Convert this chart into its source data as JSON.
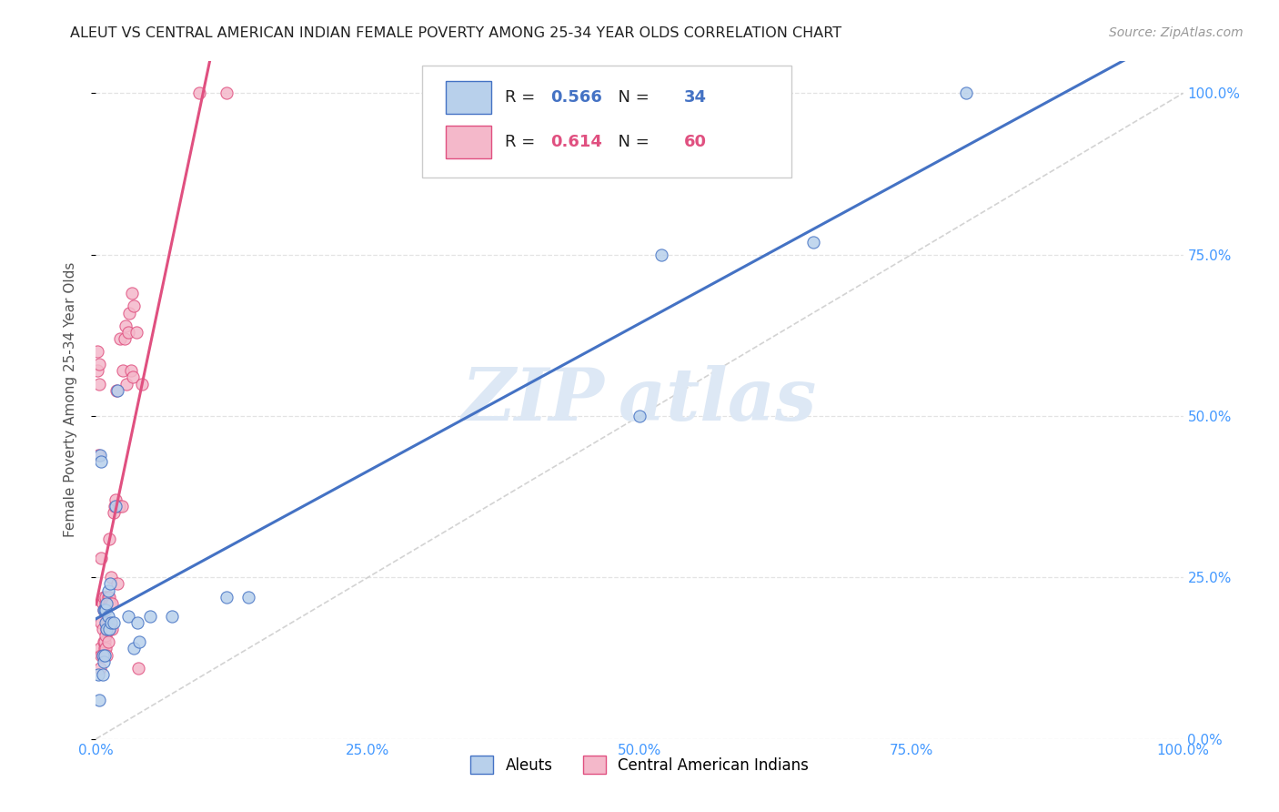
{
  "title": "ALEUT VS CENTRAL AMERICAN INDIAN FEMALE POVERTY AMONG 25-34 YEAR OLDS CORRELATION CHART",
  "source": "Source: ZipAtlas.com",
  "ylabel": "Female Poverty Among 25-34 Year Olds",
  "legend_labels": [
    "Aleuts",
    "Central American Indians"
  ],
  "aleut_R": 0.566,
  "aleut_N": 34,
  "cai_R": 0.614,
  "cai_N": 60,
  "aleut_color": "#b8d0eb",
  "aleut_line_color": "#4472c4",
  "cai_color": "#f4b8ca",
  "cai_line_color": "#e05080",
  "diagonal_color": "#c8c8c8",
  "background_color": "#ffffff",
  "grid_color": "#e0e0e0",
  "title_color": "#222222",
  "axis_tick_color": "#4499ff",
  "watermark_color": "#dde8f5",
  "aleut_x": [
    0.002,
    0.003,
    0.004,
    0.005,
    0.006,
    0.006,
    0.007,
    0.007,
    0.008,
    0.008,
    0.009,
    0.009,
    0.01,
    0.01,
    0.011,
    0.011,
    0.012,
    0.013,
    0.014,
    0.016,
    0.018,
    0.02,
    0.03,
    0.035,
    0.038,
    0.04,
    0.05,
    0.07,
    0.12,
    0.14,
    0.5,
    0.52,
    0.66,
    0.8
  ],
  "aleut_y": [
    0.1,
    0.06,
    0.44,
    0.43,
    0.13,
    0.1,
    0.12,
    0.2,
    0.13,
    0.2,
    0.18,
    0.2,
    0.17,
    0.21,
    0.19,
    0.23,
    0.17,
    0.24,
    0.18,
    0.18,
    0.36,
    0.54,
    0.19,
    0.14,
    0.18,
    0.15,
    0.19,
    0.19,
    0.22,
    0.22,
    0.5,
    0.75,
    0.77,
    1.0
  ],
  "cai_x": [
    0.001,
    0.001,
    0.002,
    0.003,
    0.003,
    0.004,
    0.004,
    0.005,
    0.005,
    0.005,
    0.006,
    0.006,
    0.006,
    0.007,
    0.007,
    0.007,
    0.007,
    0.008,
    0.008,
    0.008,
    0.009,
    0.009,
    0.009,
    0.009,
    0.01,
    0.01,
    0.01,
    0.011,
    0.011,
    0.011,
    0.012,
    0.012,
    0.013,
    0.013,
    0.014,
    0.015,
    0.015,
    0.016,
    0.017,
    0.018,
    0.019,
    0.02,
    0.021,
    0.022,
    0.024,
    0.025,
    0.026,
    0.027,
    0.028,
    0.03,
    0.031,
    0.032,
    0.033,
    0.034,
    0.035,
    0.037,
    0.039,
    0.042,
    0.095,
    0.12
  ],
  "cai_y": [
    0.57,
    0.6,
    0.44,
    0.55,
    0.58,
    0.11,
    0.14,
    0.13,
    0.18,
    0.28,
    0.13,
    0.17,
    0.21,
    0.13,
    0.15,
    0.2,
    0.22,
    0.14,
    0.15,
    0.2,
    0.14,
    0.16,
    0.21,
    0.22,
    0.13,
    0.17,
    0.18,
    0.15,
    0.18,
    0.22,
    0.22,
    0.31,
    0.17,
    0.21,
    0.25,
    0.17,
    0.21,
    0.35,
    0.36,
    0.37,
    0.54,
    0.24,
    0.36,
    0.62,
    0.36,
    0.57,
    0.62,
    0.64,
    0.55,
    0.63,
    0.66,
    0.57,
    0.69,
    0.56,
    0.67,
    0.63,
    0.11,
    0.55,
    1.0,
    1.0
  ],
  "xlim": [
    0.0,
    1.0
  ],
  "ylim": [
    0.0,
    1.05
  ],
  "xticks": [
    0.0,
    0.25,
    0.5,
    0.75,
    1.0
  ],
  "yticks": [
    0.0,
    0.25,
    0.5,
    0.75,
    1.0
  ],
  "xtick_labels": [
    "0.0%",
    "25.0%",
    "50.0%",
    "75.0%",
    "100.0%"
  ],
  "ytick_labels": [
    "0.0%",
    "25.0%",
    "50.0%",
    "75.0%",
    "100.0%"
  ]
}
